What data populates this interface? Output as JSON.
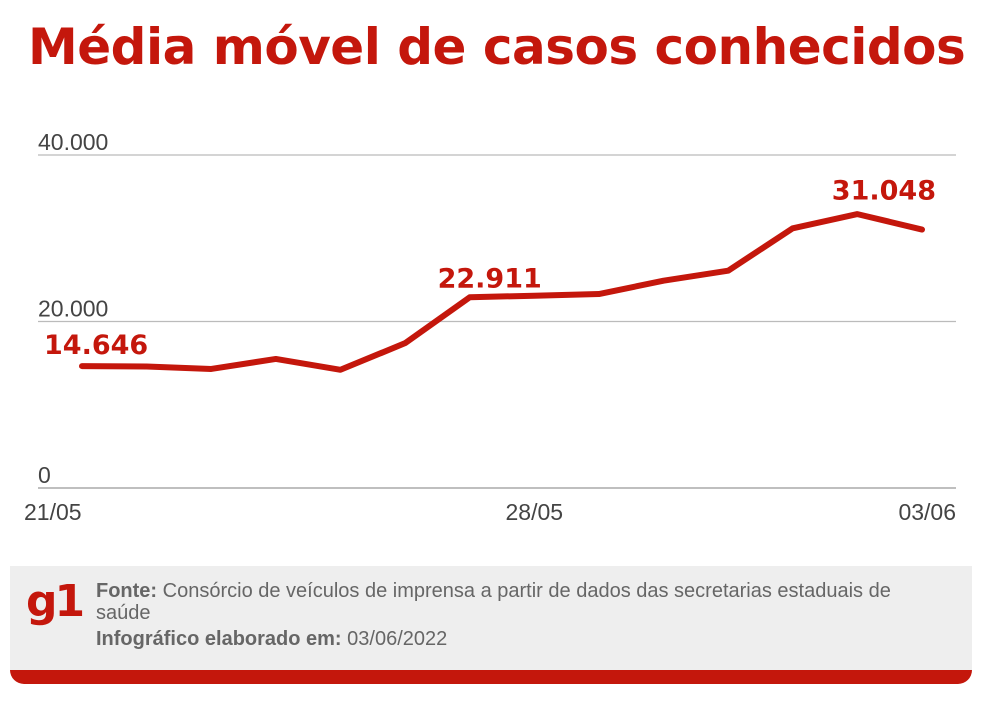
{
  "title": "Média móvel de casos conhecidos",
  "chart_data": {
    "type": "line",
    "title": "Média móvel de casos conhecidos",
    "xlabel": "",
    "ylabel": "",
    "x": [
      "21/05",
      "22/05",
      "23/05",
      "24/05",
      "25/05",
      "26/05",
      "27/05",
      "28/05",
      "29/05",
      "30/05",
      "31/05",
      "01/06",
      "02/06",
      "03/06"
    ],
    "values": [
      14646,
      14600,
      14300,
      15500,
      14200,
      17400,
      22911,
      23100,
      23300,
      24900,
      26100,
      31200,
      32900,
      31048
    ],
    "x_tick_labels": [
      "21/05",
      "28/05",
      "03/06"
    ],
    "y_ticks": [
      0,
      20000,
      40000
    ],
    "y_tick_labels": [
      "0",
      "20.000",
      "40.000"
    ],
    "ylim": [
      0,
      40000
    ],
    "grid": "horizontal",
    "annotations": [
      {
        "index": 0,
        "label": "14.646"
      },
      {
        "index": 6,
        "label": "22.911"
      },
      {
        "index": 13,
        "label": "31.048"
      }
    ],
    "line_color": "#c4170c"
  },
  "footer": {
    "logo": "g1",
    "source_label": "Fonte:",
    "source_text": " Consórcio de veículos de imprensa a partir de dados das secretarias estaduais de saúde",
    "date_label": "Infográfico elaborado em:",
    "date_value": "  03/06/2022"
  },
  "colors": {
    "accent": "#c4170c",
    "gridline": "#bbbbbb",
    "footer_bg": "#eeeeee"
  }
}
